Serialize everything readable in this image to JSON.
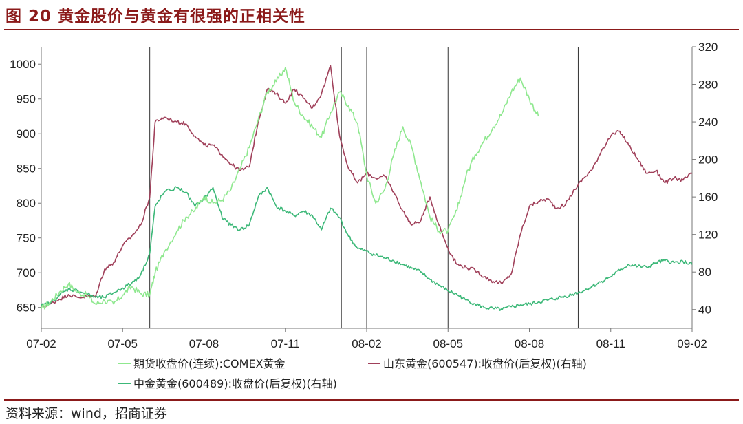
{
  "header": {
    "title": "图 20  黄金股价与黄金有很强的正相关性"
  },
  "footer": {
    "source": "资料来源：wind，招商证券"
  },
  "chart_data": {
    "type": "line",
    "x_ticks": [
      "07-02",
      "07-05",
      "07-08",
      "07-11",
      "08-02",
      "08-05",
      "08-08",
      "08-11",
      "09-02"
    ],
    "left_axis": {
      "ticks": [
        650,
        700,
        750,
        800,
        850,
        900,
        950,
        1000
      ],
      "range": [
        620,
        1025
      ]
    },
    "right_axis": {
      "ticks": [
        40,
        80,
        120,
        160,
        200,
        240,
        280,
        320
      ],
      "range": [
        20,
        320
      ]
    },
    "vertical_markers_month_index": [
      6,
      16.6,
      18,
      22.5,
      29.7
    ],
    "series": [
      {
        "name": "期货收盘价(连续):COMEX黄金",
        "axis": "left",
        "color": "#8fe88f",
        "points": [
          [
            0,
            648
          ],
          [
            0.5,
            658
          ],
          [
            1,
            672
          ],
          [
            1.5,
            684
          ],
          [
            2,
            672
          ],
          [
            2.5,
            668
          ],
          [
            3,
            655
          ],
          [
            3.5,
            660
          ],
          [
            4,
            655
          ],
          [
            4.5,
            668
          ],
          [
            5,
            680
          ],
          [
            5.5,
            670
          ],
          [
            6,
            668
          ],
          [
            6.3,
            700
          ],
          [
            6.8,
            730
          ],
          [
            7.5,
            760
          ],
          [
            8,
            780
          ],
          [
            8.5,
            790
          ],
          [
            9,
            810
          ],
          [
            9.5,
            800
          ],
          [
            10,
            805
          ],
          [
            10.5,
            820
          ],
          [
            11,
            850
          ],
          [
            11.5,
            880
          ],
          [
            12,
            920
          ],
          [
            12.5,
            960
          ],
          [
            13,
            975
          ],
          [
            13.5,
            995
          ],
          [
            14,
            945
          ],
          [
            14.5,
            925
          ],
          [
            15,
            910
          ],
          [
            15.5,
            895
          ],
          [
            16,
            930
          ],
          [
            16.5,
            960
          ],
          [
            17,
            940
          ],
          [
            17.5,
            915
          ],
          [
            18,
            840
          ],
          [
            18.5,
            800
          ],
          [
            19,
            820
          ],
          [
            19.5,
            870
          ],
          [
            20,
            910
          ],
          [
            20.5,
            880
          ],
          [
            21,
            830
          ],
          [
            21.5,
            780
          ],
          [
            22,
            760
          ],
          [
            22.5,
            760
          ],
          [
            23,
            790
          ],
          [
            23.5,
            840
          ],
          [
            24,
            870
          ],
          [
            24.5,
            890
          ],
          [
            25,
            910
          ],
          [
            25.5,
            930
          ],
          [
            26,
            960
          ],
          [
            26.5,
            980
          ],
          [
            27,
            950
          ],
          [
            27.5,
            925
          ]
        ]
      },
      {
        "name": "山东黄金(600547):收盘价(后复权)(右轴)",
        "axis": "right",
        "color": "#a0405a",
        "points": [
          [
            0,
            43
          ],
          [
            0.5,
            46
          ],
          [
            1,
            51
          ],
          [
            1.5,
            56
          ],
          [
            2,
            53
          ],
          [
            2.5,
            54
          ],
          [
            3,
            54
          ],
          [
            3.5,
            83
          ],
          [
            4,
            90
          ],
          [
            4.5,
            108
          ],
          [
            5,
            118
          ],
          [
            5.5,
            130
          ],
          [
            6,
            160
          ],
          [
            6.3,
            240
          ],
          [
            6.8,
            245
          ],
          [
            7.5,
            240
          ],
          [
            8,
            238
          ],
          [
            8.5,
            225
          ],
          [
            9,
            215
          ],
          [
            9.5,
            215
          ],
          [
            10,
            205
          ],
          [
            10.5,
            195
          ],
          [
            11,
            188
          ],
          [
            11.5,
            192
          ],
          [
            12,
            240
          ],
          [
            12.5,
            275
          ],
          [
            13,
            270
          ],
          [
            13.5,
            260
          ],
          [
            14,
            275
          ],
          [
            14.5,
            265
          ],
          [
            15,
            255
          ],
          [
            15.5,
            270
          ],
          [
            16,
            300
          ],
          [
            16.5,
            225
          ],
          [
            17,
            190
          ],
          [
            17.5,
            175
          ],
          [
            18,
            185
          ],
          [
            18.5,
            180
          ],
          [
            19,
            182
          ],
          [
            19.5,
            165
          ],
          [
            20,
            145
          ],
          [
            20.5,
            130
          ],
          [
            21,
            135
          ],
          [
            21.5,
            160
          ],
          [
            22,
            130
          ],
          [
            22.5,
            105
          ],
          [
            23,
            88
          ],
          [
            23.5,
            85
          ],
          [
            24,
            82
          ],
          [
            24.5,
            75
          ],
          [
            25,
            70
          ],
          [
            25.5,
            68
          ],
          [
            26,
            78
          ],
          [
            26.5,
            120
          ],
          [
            27,
            150
          ],
          [
            27.5,
            155
          ],
          [
            28,
            158
          ],
          [
            28.5,
            148
          ],
          [
            29,
            152
          ],
          [
            29.5,
            168
          ],
          [
            30,
            180
          ],
          [
            30.5,
            190
          ],
          [
            31,
            210
          ],
          [
            31.5,
            225
          ],
          [
            32,
            230
          ],
          [
            32.5,
            215
          ],
          [
            33,
            200
          ],
          [
            33.5,
            185
          ],
          [
            34,
            188
          ],
          [
            34.5,
            175
          ],
          [
            35,
            180
          ],
          [
            35.5,
            178
          ],
          [
            36,
            185
          ]
        ]
      },
      {
        "name": "中金黄金(600489):收盘价(后复权)(右轴)",
        "axis": "right",
        "color": "#3cb878",
        "points": [
          [
            0,
            44
          ],
          [
            0.5,
            47
          ],
          [
            1,
            55
          ],
          [
            1.5,
            62
          ],
          [
            2,
            60
          ],
          [
            2.5,
            57
          ],
          [
            3,
            53
          ],
          [
            3.5,
            53
          ],
          [
            4,
            58
          ],
          [
            4.5,
            63
          ],
          [
            5,
            68
          ],
          [
            5.5,
            77
          ],
          [
            6,
            100
          ],
          [
            6.3,
            150
          ],
          [
            6.8,
            165
          ],
          [
            7.5,
            170
          ],
          [
            8,
            165
          ],
          [
            8.5,
            150
          ],
          [
            9,
            158
          ],
          [
            9.5,
            170
          ],
          [
            10,
            138
          ],
          [
            10.5,
            130
          ],
          [
            11,
            125
          ],
          [
            11.5,
            130
          ],
          [
            12,
            160
          ],
          [
            12.5,
            170
          ],
          [
            13,
            150
          ],
          [
            13.5,
            145
          ],
          [
            14,
            140
          ],
          [
            14.5,
            145
          ],
          [
            15,
            140
          ],
          [
            15.5,
            125
          ],
          [
            16,
            148
          ],
          [
            16.5,
            138
          ],
          [
            17,
            118
          ],
          [
            17.5,
            105
          ],
          [
            18,
            102
          ],
          [
            18.5,
            98
          ],
          [
            19,
            95
          ],
          [
            19.5,
            92
          ],
          [
            20,
            88
          ],
          [
            20.5,
            84
          ],
          [
            21,
            80
          ],
          [
            21.5,
            72
          ],
          [
            22,
            66
          ],
          [
            22.5,
            60
          ],
          [
            23,
            56
          ],
          [
            23.5,
            50
          ],
          [
            24,
            46
          ],
          [
            24.5,
            42
          ],
          [
            25,
            41
          ],
          [
            25.5,
            40
          ],
          [
            26,
            43
          ],
          [
            26.5,
            45
          ],
          [
            27,
            46
          ],
          [
            27.5,
            48
          ],
          [
            28,
            50
          ],
          [
            28.5,
            52
          ],
          [
            29,
            54
          ],
          [
            29.5,
            57
          ],
          [
            30,
            60
          ],
          [
            30.5,
            65
          ],
          [
            31,
            70
          ],
          [
            31.5,
            75
          ],
          [
            32,
            82
          ],
          [
            32.5,
            88
          ],
          [
            33,
            86
          ],
          [
            33.5,
            85
          ],
          [
            34,
            90
          ],
          [
            34.5,
            92
          ],
          [
            35,
            90
          ],
          [
            35.5,
            91
          ],
          [
            36,
            88
          ]
        ]
      }
    ]
  }
}
